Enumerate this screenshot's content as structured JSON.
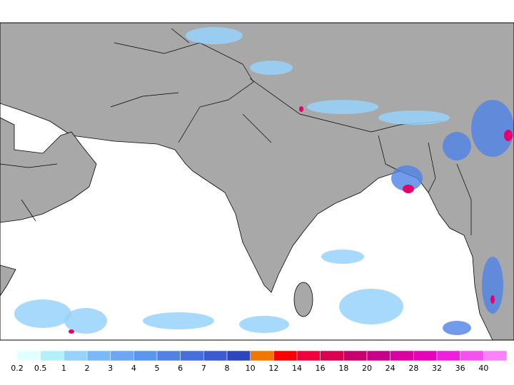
{
  "colorbar": {
    "labels": [
      "0.2",
      "0.5",
      "1",
      "2",
      "3",
      "4",
      "5",
      "6",
      "7",
      "8",
      "10",
      "12",
      "14",
      "16",
      "18",
      "20",
      "24",
      "28",
      "32",
      "36",
      "40"
    ],
    "colors": [
      "#e1ffff",
      "#b4f0fa",
      "#96d2fa",
      "#78b9fa",
      "#6ea5f5",
      "#5a96f0",
      "#5082e6",
      "#466edc",
      "#3c5ad2",
      "#2d46be",
      "#f07800",
      "#fa0000",
      "#f0003c",
      "#dc0050",
      "#c8006e",
      "#c8008c",
      "#dc00a0",
      "#e600b9",
      "#f01ede",
      "#f550f0",
      "#fa82fa"
    ]
  }
}
